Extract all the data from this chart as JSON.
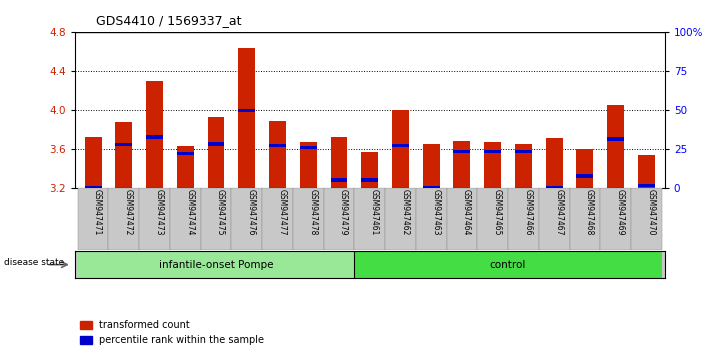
{
  "title": "GDS4410 / 1569337_at",
  "samples": [
    "GSM947471",
    "GSM947472",
    "GSM947473",
    "GSM947474",
    "GSM947475",
    "GSM947476",
    "GSM947477",
    "GSM947478",
    "GSM947479",
    "GSM947461",
    "GSM947462",
    "GSM947463",
    "GSM947464",
    "GSM947465",
    "GSM947466",
    "GSM947467",
    "GSM947468",
    "GSM947469",
    "GSM947470"
  ],
  "transformed_count": [
    3.72,
    3.87,
    4.3,
    3.63,
    3.93,
    4.63,
    3.88,
    3.67,
    3.72,
    3.57,
    4.0,
    3.65,
    3.68,
    3.67,
    3.65,
    3.71,
    3.6,
    4.05,
    3.53
  ],
  "percentile": [
    3.2,
    3.64,
    3.72,
    3.55,
    3.65,
    3.99,
    3.63,
    3.61,
    3.28,
    3.28,
    3.63,
    3.2,
    3.57,
    3.57,
    3.57,
    3.2,
    3.32,
    3.7,
    3.22
  ],
  "groups": [
    {
      "label": "infantile-onset Pompe",
      "start": 0,
      "end": 9,
      "color": "#98E898"
    },
    {
      "label": "control",
      "start": 9,
      "end": 19,
      "color": "#44DD44"
    }
  ],
  "ylim": [
    3.2,
    4.8
  ],
  "y_ticks": [
    3.2,
    3.6,
    4.0,
    4.4,
    4.8
  ],
  "right_ylim": [
    0,
    100
  ],
  "right_ticks": [
    0,
    25,
    50,
    75,
    100
  ],
  "right_tick_labels": [
    "0",
    "25",
    "50",
    "75",
    "100%"
  ],
  "dotted_lines": [
    3.6,
    4.0,
    4.4
  ],
  "bar_color": "#CC2200",
  "marker_color": "#0000CC",
  "bg_color": "#FFFFFF",
  "group_bg": "#C8C8C8",
  "disease_state_label": "disease state",
  "legend_items": [
    "transformed count",
    "percentile rank within the sample"
  ]
}
